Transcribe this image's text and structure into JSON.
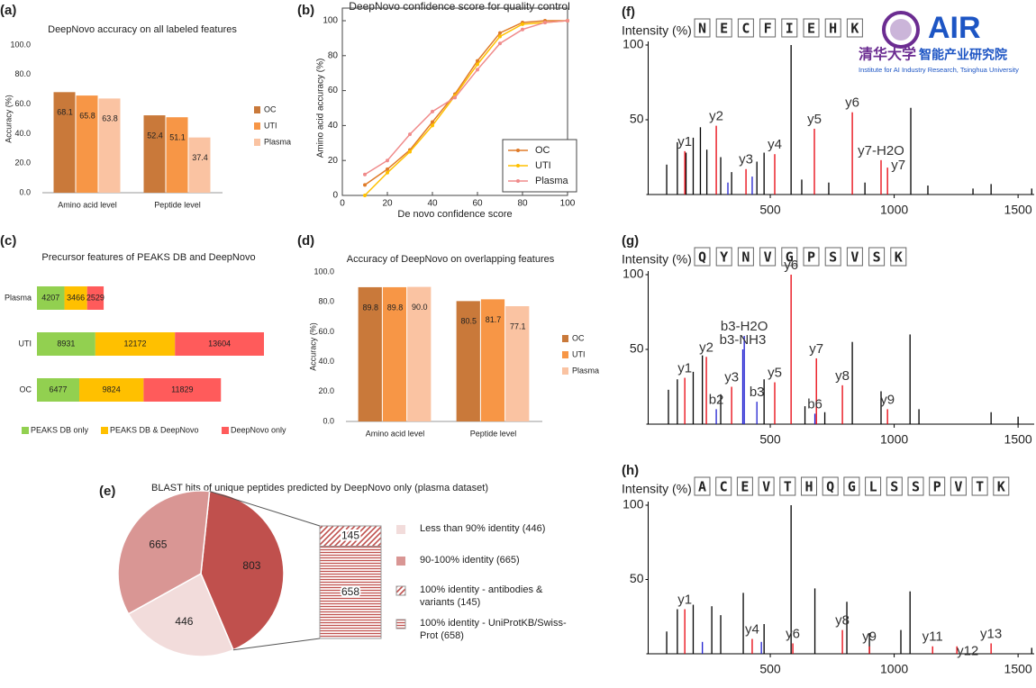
{
  "chart_data": [
    {
      "type": "bar",
      "panel": "(a)",
      "title": "DeepNovo accuracy on all labeled features",
      "ylabel": "Accuracy (%)",
      "categories": [
        "Amino acid level",
        "Peptide level"
      ],
      "series": [
        {
          "name": "OC",
          "color": "#c9793a",
          "values": [
            68.1,
            52.4
          ]
        },
        {
          "name": "UTI",
          "color": "#f79646",
          "values": [
            65.8,
            51.1
          ]
        },
        {
          "name": "Plasma",
          "color": "#fac3a2",
          "values": [
            63.8,
            37.4
          ]
        }
      ],
      "ylim": [
        0,
        100
      ],
      "yticks": [
        {
          "value": 0,
          "label": "0.0"
        },
        {
          "value": 20,
          "label": "20.0"
        },
        {
          "value": 40,
          "label": "40.0"
        },
        {
          "value": 60,
          "label": "60.0"
        },
        {
          "value": 80,
          "label": "80.0"
        },
        {
          "value": 100,
          "label": "100.0"
        }
      ]
    },
    {
      "type": "line",
      "panel": "(b)",
      "title": "DeepNovo confidence score for quality control",
      "xlabel": "De novo confidence score",
      "ylabel": "Amino acid accuracy (%)",
      "x": [
        10,
        20,
        30,
        40,
        50,
        60,
        70,
        80,
        90,
        100
      ],
      "series": [
        {
          "name": "OC",
          "color": "#e07b28",
          "values": [
            6,
            15,
            26,
            42,
            58,
            77,
            93,
            99,
            100,
            100
          ]
        },
        {
          "name": "UTI",
          "color": "#ffc000",
          "values": [
            0,
            13,
            25,
            40,
            57,
            75,
            91,
            98,
            99,
            100
          ]
        },
        {
          "name": "Plasma",
          "color": "#f08b8b",
          "values": [
            12,
            20,
            35,
            48,
            56,
            72,
            87,
            95,
            99,
            100
          ]
        }
      ],
      "xlim": [
        0,
        100
      ],
      "xticks": [
        0,
        20,
        40,
        60,
        80,
        100
      ],
      "ylim": [
        0,
        100
      ],
      "yticks": [
        0,
        20,
        40,
        60,
        80,
        100
      ]
    },
    {
      "type": "barh",
      "panel": "(c)",
      "title": "Precursor  features of PEAKS DB and DeepNovo",
      "categories": [
        "Plasma",
        "UTI",
        "OC"
      ],
      "series": [
        {
          "name": "PEAKS DB only",
          "color": "#92d050",
          "values": [
            4207,
            8931,
            6477
          ]
        },
        {
          "name": "PEAKS DB & DeepNovo",
          "color": "#ffc000",
          "values": [
            3466,
            12172,
            9824
          ]
        },
        {
          "name": "DeepNovo only",
          "color": "#ff5b5b",
          "values": [
            2529,
            13604,
            11829
          ]
        }
      ]
    },
    {
      "type": "bar",
      "panel": "(d)",
      "title": "Accuracy of DeepNovo on overlapping features",
      "ylabel": "Accuracy (%)",
      "categories": [
        "Amino acid level",
        "Peptide level"
      ],
      "series": [
        {
          "name": "OC",
          "color": "#c9793a",
          "values": [
            89.8,
            80.5
          ]
        },
        {
          "name": "UTI",
          "color": "#f79646",
          "values": [
            89.8,
            81.7
          ]
        },
        {
          "name": "Plasma",
          "color": "#fac3a2",
          "values": [
            90,
            77.1
          ],
          "value_labels": [
            "90.0",
            "77.1"
          ]
        }
      ],
      "ylim": [
        0,
        100
      ],
      "yticks": [
        {
          "value": 0,
          "label": "0.0"
        },
        {
          "value": 20,
          "label": "20.0"
        },
        {
          "value": 40,
          "label": "40.0"
        },
        {
          "value": 60,
          "label": "60.0"
        },
        {
          "value": 80,
          "label": "80.0"
        },
        {
          "value": 100,
          "label": "100.0"
        }
      ]
    },
    {
      "type": "pie",
      "panel": "(e)",
      "title": "BLAST hits of unique peptides predicted by DeepNovo only (plasma dataset)",
      "categories": [
        null,
        "Less than 90% identity (446)",
        "90-100% identity (665)"
      ],
      "values": [
        803,
        446,
        665
      ],
      "colors": [
        "#c0504d",
        "#f2dcdb",
        "#d99694"
      ],
      "breakdown": {
        "categories": [
          "100% identity - antibodies & variants (145)",
          "100% identity - UniProtKB/Swiss-Prot (658)"
        ],
        "values": [
          145,
          658
        ],
        "colors": [
          "#c0504d",
          "#c0504d"
        ],
        "patterns": [
          "diagonal",
          "horizontal"
        ]
      }
    },
    {
      "type": "spectrum",
      "panel": "(f)",
      "ylabel": "Intensity (%)",
      "sequence": [
        "N",
        "E",
        "C",
        "F",
        "I",
        "E",
        "H",
        "K"
      ],
      "series": [
        {
          "color": "#000000",
          "x": [
            82,
            125,
            160,
            189,
            218,
            244,
            300,
            344,
            446,
            475,
            584,
            627,
            736,
            882,
            1067,
            1136,
            1318,
            1391,
            1555
          ],
          "values": [
            20,
            35,
            28,
            38,
            45,
            30,
            25,
            15,
            22,
            28,
            100,
            10,
            8,
            8,
            58,
            6,
            4,
            7,
            4
          ]
        },
        {
          "color": "#e8000b",
          "x": [
            155,
            282,
            402,
            518,
            678,
            831,
            947,
            973
          ],
          "values": [
            29,
            46,
            17,
            27,
            44,
            55,
            23,
            18
          ],
          "labels": [
            "y1",
            "y2",
            "y3",
            "y4",
            "y5",
            "y6",
            "y7-H2O",
            "y7"
          ]
        },
        {
          "color": "#1f1fd0",
          "x": [
            329,
            427
          ],
          "values": [
            8,
            12
          ]
        }
      ],
      "xlim": [
        0,
        1565
      ],
      "xticks": [
        500,
        1000,
        1500
      ],
      "ylim": [
        0,
        100
      ],
      "yticks": [
        50,
        100
      ]
    },
    {
      "type": "spectrum",
      "panel": "(g)",
      "ylabel": "Intensity (%)",
      "sequence": [
        "Q",
        "Y",
        "N",
        "V",
        "G",
        "P",
        "S",
        "V",
        "S",
        "K"
      ],
      "series": [
        {
          "color": "#000000",
          "x": [
            89,
            125,
            189,
            226,
            300,
            475,
            640,
            720,
            831,
            947,
            1064,
            1100,
            1391,
            1500
          ],
          "values": [
            23,
            30,
            35,
            46,
            20,
            30,
            12,
            8,
            55,
            22,
            60,
            10,
            8,
            5
          ]
        },
        {
          "color": "#e8000b",
          "x": [
            155,
            242,
            344,
            518,
            584,
            686,
            791,
            973
          ],
          "values": [
            31,
            45,
            25,
            28,
            100,
            44,
            26,
            10
          ],
          "labels": [
            "y1",
            "y2",
            "y3",
            "y5",
            "y6",
            "y7",
            "y8",
            "y9"
          ]
        },
        {
          "color": "#1f1fd0",
          "x": [
            282,
            389,
            395,
            446,
            680
          ],
          "values": [
            10,
            50,
            59,
            15,
            7
          ],
          "labels": [
            "b2",
            "b3-NH3",
            "b3-H2O",
            "b3",
            "b6"
          ]
        }
      ],
      "xlim": [
        0,
        1565
      ],
      "xticks": [
        500,
        1000,
        1500
      ],
      "ylim": [
        0,
        100
      ],
      "yticks": [
        50,
        100
      ]
    },
    {
      "type": "spectrum",
      "panel": "(h)",
      "ylabel": "Intensity (%)",
      "sequence": [
        "A",
        "C",
        "E",
        "V",
        "T",
        "H",
        "Q",
        "G",
        "L",
        "S",
        "S",
        "P",
        "V",
        "T",
        "K"
      ],
      "series": [
        {
          "color": "#000000",
          "x": [
            82,
            125,
            189,
            264,
            300,
            391,
            475,
            584,
            680,
            809,
            900,
            1027,
            1064,
            1555
          ],
          "values": [
            15,
            30,
            33,
            32,
            26,
            41,
            20,
            100,
            44,
            35,
            14,
            16,
            42,
            4
          ]
        },
        {
          "color": "#e8000b",
          "x": [
            155,
            427,
            591,
            791,
            900,
            1155,
            1253,
            1391
          ],
          "values": [
            30,
            10,
            7,
            16,
            5,
            5,
            5,
            7
          ],
          "labels": [
            "y1",
            "y4",
            "y6",
            "y8",
            "y9",
            "y11",
            "y12",
            "y13"
          ]
        },
        {
          "color": "#1f1fd0",
          "x": [
            226,
            464
          ],
          "values": [
            8,
            8
          ]
        }
      ],
      "xlim": [
        0,
        1565
      ],
      "xticks": [
        500,
        1000,
        1500
      ],
      "ylim": [
        0,
        100
      ],
      "yticks": [
        50,
        100
      ]
    }
  ],
  "logo": {
    "name": "AIR",
    "chinese_name": "清华大学",
    "chinese_institute": "智能产业研究院",
    "english": "Institute for AI Industry Research, Tsinghua University"
  }
}
